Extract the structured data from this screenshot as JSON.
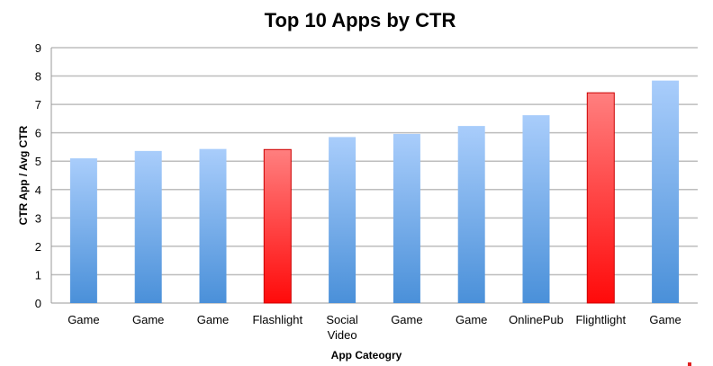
{
  "chart_data": {
    "type": "bar",
    "title": "Top 10 Apps by CTR",
    "xlabel": "App Cateogry",
    "ylabel": "CTR App / Avg CTR",
    "ylim": [
      0,
      9
    ],
    "yticks": [
      "0",
      "1",
      "2",
      "3",
      "4",
      "5",
      "6",
      "7",
      "8",
      "9"
    ],
    "grid": true,
    "categories": [
      "Game",
      "Game",
      "Game",
      "Flashlight",
      "Social Video",
      "Game",
      "Game",
      "OnlinePub",
      "Flightlight",
      "Game"
    ],
    "values": [
      5.1,
      5.36,
      5.43,
      5.41,
      5.85,
      5.96,
      6.24,
      6.62,
      7.41,
      7.84
    ],
    "highlighted": [
      false,
      false,
      false,
      true,
      false,
      false,
      false,
      false,
      true,
      false
    ],
    "colors": {
      "normal_top": "#a9cdfb",
      "normal_bottom": "#4a90d9",
      "highlight_top": "#ff8080",
      "highlight_bottom": "#ff1010",
      "grid": "#bdbdbd"
    }
  }
}
